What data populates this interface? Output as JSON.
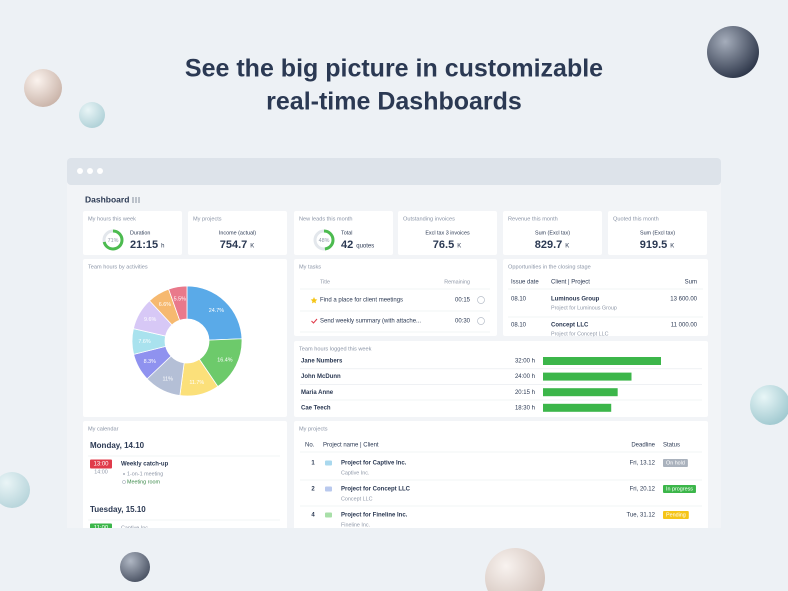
{
  "header": {
    "title_line1": "See the big picture in customizable",
    "title_line2": "real-time Dashboards"
  },
  "dashboard": {
    "title": "Dashboard",
    "kpis": [
      {
        "title": "My hours this week",
        "ring": {
          "value": 71,
          "label": "71%"
        },
        "caption": "Duration",
        "value": "21:15",
        "unit": "h"
      },
      {
        "title": "My projects",
        "caption": "Income (actual)",
        "value": "754.7",
        "unit": "K"
      },
      {
        "title": "New leads this month",
        "ring": {
          "value": 48,
          "label": "48%"
        },
        "caption": "Total",
        "value": "42",
        "unit": "quotes"
      },
      {
        "title": "Outstanding invoices",
        "caption": "Excl tax 3 invoices",
        "value": "76.5",
        "unit": "K"
      },
      {
        "title": "Revenue this month",
        "caption": "Sum (Excl tax)",
        "value": "829.7",
        "unit": "K"
      },
      {
        "title": "Quoted this month",
        "caption": "Sum (Excl tax)",
        "value": "919.5",
        "unit": "K"
      }
    ],
    "activities": {
      "title": "Team hours by activities",
      "type": "pie",
      "donut": true,
      "values": [
        24.7,
        16.4,
        11.7,
        11,
        8.3,
        7.6,
        9.6,
        6.6,
        5.5
      ],
      "value_labels": [
        "24.7%",
        "16.4%",
        "11.7%",
        "11%",
        "8.3%",
        "7.6%",
        "9.6%",
        "6.6%",
        "5.5%"
      ],
      "colors": [
        "#5aaae8",
        "#6dca6b",
        "#fbe07a",
        "#b4bfd6",
        "#8f92ef",
        "#a9e2ee",
        "#d7c8f6",
        "#f6b970",
        "#e9798b"
      ]
    },
    "tasks": {
      "title": "My tasks",
      "columns": [
        "Title",
        "Remaining"
      ],
      "rows": [
        [
          "Find a place for client meetings",
          "00:15"
        ],
        [
          "Send weekly summary (with attache...",
          "00:30"
        ]
      ]
    },
    "opportunities": {
      "title": "Opportunities in the closing stage",
      "columns": [
        "Issue date",
        "Client | Project",
        "Sum"
      ],
      "rows": [
        {
          "date": "08.10",
          "client": "Luminous Group",
          "project": "Project for Luminous Group",
          "sum": "13 600.00"
        },
        {
          "date": "08.10",
          "client": "Concept LLC",
          "project": "Project for Concept LLC",
          "sum": "11 000.00"
        }
      ]
    },
    "hours_logged": {
      "title": "Team hours logged this week",
      "type": "bar",
      "categories": [
        "Jane Numbers",
        "John McDunn",
        "Maria Anne",
        "Cae Teech"
      ],
      "values": [
        32,
        24,
        20.25,
        18.5
      ],
      "value_labels": [
        "32:00 h",
        "24:00 h",
        "20:15 h",
        "18:30 h"
      ],
      "color": "#3cb64a"
    },
    "calendar": {
      "title": "My calendar",
      "days": [
        {
          "date": "Monday, 14.10",
          "events": [
            {
              "start": "13:00",
              "end": "14:00",
              "title": "Weekly catch-up",
              "kind": "1-on-1 meeting",
              "place": "Meeting room",
              "color": "#e03b4a"
            }
          ]
        },
        {
          "date": "Tuesday, 15.10",
          "events": [
            {
              "start": "11:00",
              "client": "Captive Inc.",
              "color": "#3cb64a"
            }
          ]
        }
      ]
    },
    "projects": {
      "title": "My projects",
      "columns": [
        "No.",
        "Project name | Client",
        "Deadline",
        "Status"
      ],
      "rows": [
        {
          "no": "1",
          "name": "Project for Captive Inc.",
          "client": "Captive Inc.",
          "deadline": "Fri, 13.12",
          "status": "On hold",
          "status_color": "#aab2bd"
        },
        {
          "no": "2",
          "name": "Project for Concept LLC",
          "client": "Concept LLC",
          "deadline": "Fri, 20.12",
          "status": "In progress",
          "status_color": "#3cb64a"
        },
        {
          "no": "4",
          "name": "Project for Fineline Inc.",
          "client": "Fineline Inc.",
          "deadline": "Tue, 31.12",
          "status": "Pending",
          "status_color": "#f5c518"
        }
      ]
    }
  }
}
